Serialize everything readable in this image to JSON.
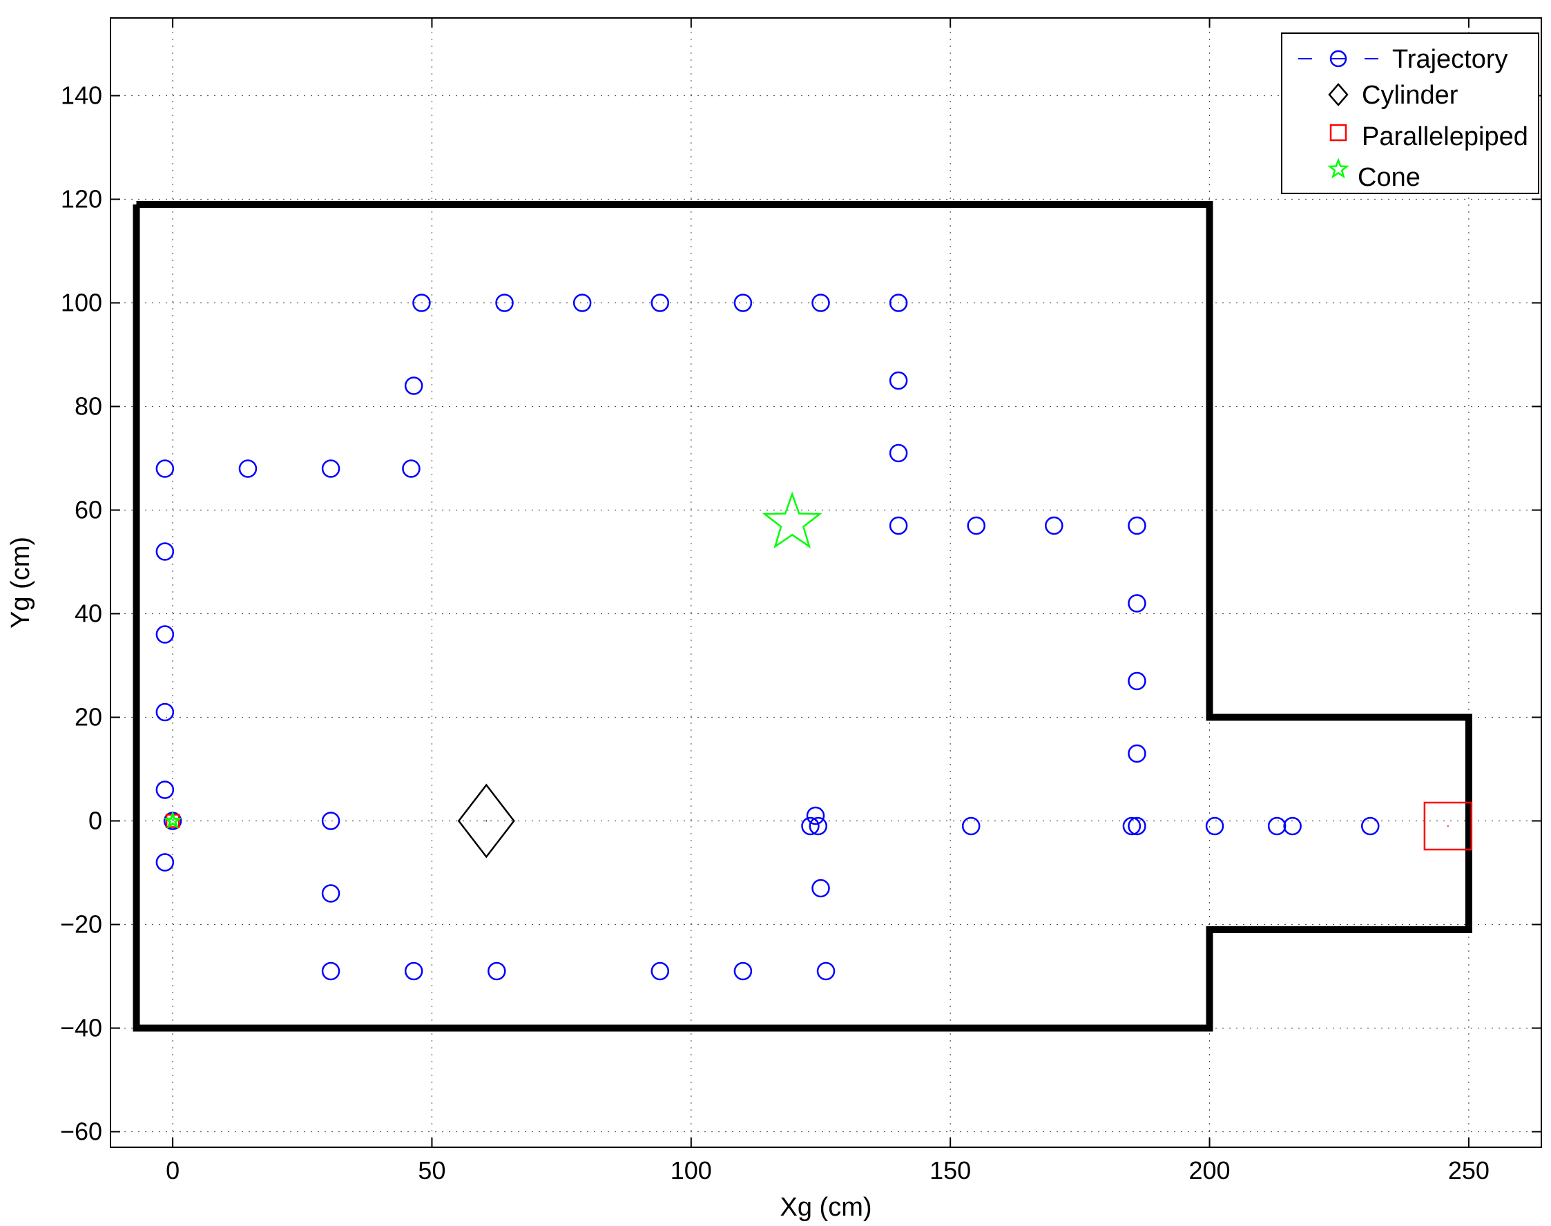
{
  "chart_data": {
    "type": "scatter",
    "title": "",
    "xlabel": "Xg (cm)",
    "ylabel": "Yg (cm)",
    "xlim": [
      -12,
      264
    ],
    "ylim": [
      -63,
      155
    ],
    "grid": true,
    "x_ticks": [
      0,
      50,
      100,
      150,
      200,
      250
    ],
    "x_tick_labels": [
      "0",
      "50",
      "100",
      "150",
      "200",
      "250"
    ],
    "y_ticks": [
      -60,
      -40,
      -20,
      0,
      20,
      40,
      60,
      80,
      100,
      120,
      140
    ],
    "y_tick_labels": [
      "−60",
      "−40",
      "−20",
      "0",
      "20",
      "40",
      "60",
      "80",
      "100",
      "120",
      "140"
    ],
    "legend_position": "top-right",
    "colors": {
      "trajectory": "#0000ff",
      "cylinder": "#000000",
      "parallelepiped": "#ff0000",
      "cone": "#00ff00",
      "boundary": "#000000"
    },
    "series": [
      {
        "name": "Trajectory",
        "marker": "circle",
        "points": [
          [
            0,
            0
          ],
          [
            -1.5,
            -8
          ],
          [
            -1.5,
            6
          ],
          [
            -1.5,
            21
          ],
          [
            -1.5,
            36
          ],
          [
            -1.5,
            52
          ],
          [
            -1.5,
            68
          ],
          [
            14.5,
            68
          ],
          [
            30.5,
            68
          ],
          [
            46,
            68
          ],
          [
            46.5,
            84
          ],
          [
            48,
            100
          ],
          [
            64,
            100
          ],
          [
            79,
            100
          ],
          [
            94,
            100
          ],
          [
            110,
            100
          ],
          [
            125,
            100
          ],
          [
            140,
            100
          ],
          [
            140,
            85
          ],
          [
            140,
            71
          ],
          [
            140,
            57
          ],
          [
            155,
            57
          ],
          [
            170,
            57
          ],
          [
            186,
            57
          ],
          [
            186,
            42
          ],
          [
            186,
            27
          ],
          [
            186,
            13
          ],
          [
            185,
            -1
          ],
          [
            186,
            -1
          ],
          [
            201,
            -1
          ],
          [
            213,
            -1
          ],
          [
            216,
            -1
          ],
          [
            231,
            -1
          ],
          [
            154,
            -1
          ],
          [
            124,
            1
          ],
          [
            123,
            -1
          ],
          [
            124.5,
            -1
          ],
          [
            125,
            -13
          ],
          [
            126,
            -29
          ],
          [
            110,
            -29
          ],
          [
            94,
            -29
          ],
          [
            62.5,
            -29
          ],
          [
            46.5,
            -29
          ],
          [
            30.5,
            -29
          ],
          [
            30.5,
            -14
          ],
          [
            30.5,
            0
          ]
        ]
      },
      {
        "name": "Cylinder",
        "marker": "diamond",
        "points": [
          [
            60.5,
            0
          ]
        ]
      },
      {
        "name": "Parallelepiped",
        "marker": "square",
        "points": [
          [
            246,
            -1
          ],
          [
            0,
            0
          ]
        ]
      },
      {
        "name": "Cone",
        "marker": "star",
        "points": [
          [
            119.5,
            57.5
          ],
          [
            0,
            0
          ]
        ]
      }
    ],
    "boundary": [
      [
        -7,
        119
      ],
      [
        200,
        119
      ],
      [
        200,
        20
      ],
      [
        250,
        20
      ],
      [
        250,
        -21
      ],
      [
        200,
        -21
      ],
      [
        200,
        -40
      ],
      [
        -7,
        -40
      ],
      [
        -7,
        119
      ]
    ]
  }
}
